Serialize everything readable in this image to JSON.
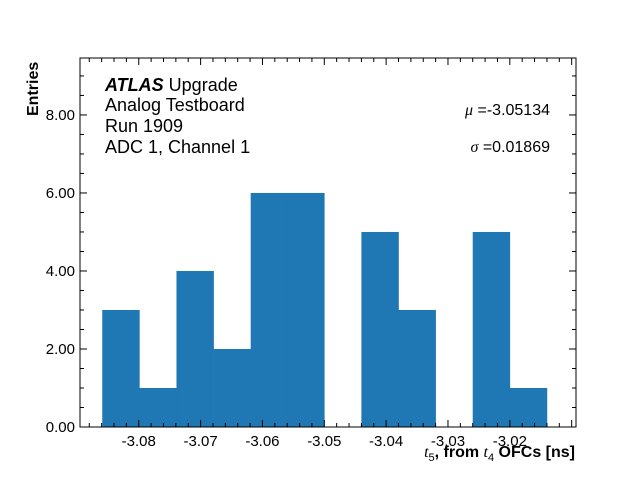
{
  "chart_data": {
    "type": "bar",
    "histogram": true,
    "bin_edges": [
      -3.0859,
      -3.0799,
      -3.0739,
      -3.0679,
      -3.0619,
      -3.0559,
      -3.05,
      -3.044,
      -3.038,
      -3.032,
      -3.026,
      -3.02,
      -3.014
    ],
    "values": [
      3,
      1,
      4,
      2,
      6,
      6,
      0,
      5,
      3,
      0,
      5,
      1
    ],
    "color": "#1f77b4",
    "xlim": [
      -3.0895,
      -3.0093
    ],
    "ylim": [
      0,
      9.46
    ],
    "xticks": [
      -3.08,
      -3.07,
      -3.06,
      -3.05,
      -3.04,
      -3.03,
      -3.02
    ],
    "xtick_labels": [
      "-3.08",
      "-3.07",
      "-3.06",
      "-3.05",
      "-3.04",
      "-3.03",
      "-3.02"
    ],
    "yticks": [
      0,
      2,
      4,
      6,
      8
    ],
    "ytick_labels": [
      "0.00",
      "2.00",
      "4.00",
      "6.00",
      "8.00"
    ],
    "xlabel_parts": {
      "t5": "t",
      "t5_sub": "5",
      "mid": ", from ",
      "t4": "t",
      "t4_sub": "4",
      "end": " OFCs [ns]"
    },
    "ylabel": "Entries",
    "grid": false,
    "annotations": {
      "atlas": "ATLAS",
      "upgrade": " Upgrade",
      "line2": "Analog Testboard",
      "line3": "Run 1909",
      "line4": "ADC 1, Channel 1",
      "mu_symbol": "μ",
      "mu_value": " =-3.05134",
      "sigma_symbol": "σ",
      "sigma_value": " =0.01869"
    }
  }
}
